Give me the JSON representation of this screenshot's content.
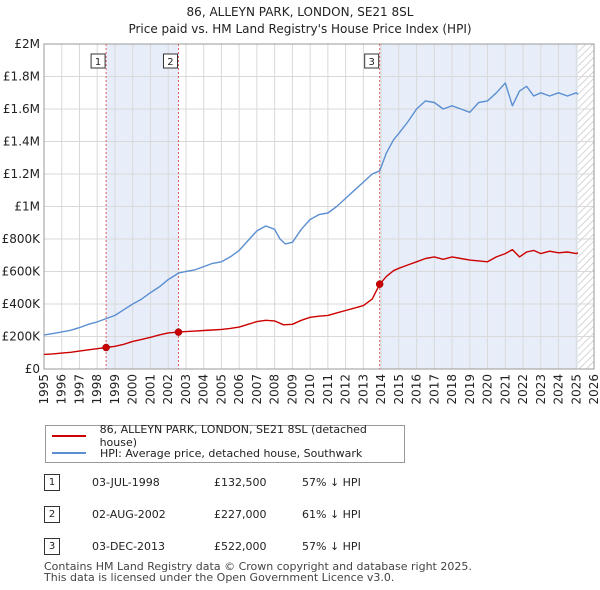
{
  "chart_data": {
    "type": "line",
    "title": "86, ALLEYN PARK, LONDON, SE21 8SL",
    "subtitle": "Price paid vs. HM Land Registry's House Price Index (HPI)",
    "xlim": [
      1995,
      2026
    ],
    "ylim": [
      0,
      2000000
    ],
    "y_ticks": [
      0,
      200000,
      400000,
      600000,
      800000,
      1000000,
      1200000,
      1400000,
      1600000,
      1800000,
      2000000
    ],
    "y_tick_labels": [
      "£0",
      "£200K",
      "£400K",
      "£600K",
      "£800K",
      "£1M",
      "£1.2M",
      "£1.4M",
      "£1.6M",
      "£1.8M",
      "£2M"
    ],
    "x_ticks": [
      1995,
      1996,
      1997,
      1998,
      1999,
      2000,
      2001,
      2002,
      2003,
      2004,
      2005,
      2006,
      2007,
      2008,
      2009,
      2010,
      2011,
      2012,
      2013,
      2014,
      2015,
      2016,
      2017,
      2018,
      2019,
      2020,
      2021,
      2022,
      2023,
      2024,
      2025,
      2026
    ],
    "x_tick_labels": [
      "1995",
      "1996",
      "1997",
      "1998",
      "1999",
      "2000",
      "2001",
      "2002",
      "2003",
      "2004",
      "2005",
      "2006",
      "2007",
      "2008",
      "2009",
      "2010",
      "2011",
      "2012",
      "2013",
      "2014",
      "2015",
      "2016",
      "2017",
      "2018",
      "2019",
      "2020",
      "2021",
      "2022",
      "2023",
      "2024",
      "2025",
      "2026"
    ],
    "grid": true,
    "shaded_periods": [
      [
        1998.5,
        2002.58
      ],
      [
        2013.92,
        2025.1
      ]
    ],
    "hatch_from": 2025.1,
    "series": [
      {
        "name": "86, ALLEYN PARK, LONDON, SE21 8SL (detached house)",
        "color": "#cc0000",
        "x": [
          1995,
          1995.5,
          1996,
          1996.5,
          1997,
          1997.5,
          1998,
          1998.5,
          1999,
          1999.5,
          2000,
          2000.5,
          2001,
          2001.5,
          2002,
          2002.58,
          2003,
          2003.5,
          2004,
          2004.5,
          2005,
          2005.5,
          2006,
          2006.5,
          2007,
          2007.5,
          2008,
          2008.5,
          2009,
          2009.5,
          2010,
          2010.5,
          2011,
          2011.5,
          2012,
          2012.5,
          2013,
          2013.5,
          2013.92,
          2014.3,
          2014.7,
          2015,
          2015.5,
          2016,
          2016.5,
          2017,
          2017.5,
          2018,
          2018.5,
          2019,
          2019.5,
          2020,
          2020.5,
          2021,
          2021.4,
          2021.8,
          2022.2,
          2022.6,
          2023,
          2023.5,
          2024,
          2024.5,
          2025,
          2025.1
        ],
        "values": [
          90000,
          93000,
          98000,
          103000,
          110000,
          118000,
          125000,
          132500,
          140000,
          152000,
          170000,
          182000,
          195000,
          210000,
          222000,
          227000,
          230000,
          233000,
          237000,
          240000,
          244000,
          250000,
          258000,
          275000,
          292000,
          300000,
          296000,
          272000,
          275000,
          300000,
          318000,
          325000,
          330000,
          345000,
          360000,
          375000,
          390000,
          430000,
          522000,
          570000,
          605000,
          620000,
          640000,
          660000,
          680000,
          690000,
          675000,
          690000,
          680000,
          670000,
          665000,
          660000,
          690000,
          710000,
          735000,
          690000,
          720000,
          730000,
          710000,
          725000,
          715000,
          720000,
          710000,
          715000
        ]
      },
      {
        "name": "HPI: Average price, detached house, Southwark",
        "color": "#5b8fd1",
        "x": [
          1995,
          1995.5,
          1996,
          1996.5,
          1997,
          1997.5,
          1998,
          1998.5,
          1999,
          1999.5,
          2000,
          2000.5,
          2001,
          2001.5,
          2002,
          2002.58,
          2003,
          2003.5,
          2004,
          2004.5,
          2005,
          2005.5,
          2006,
          2006.5,
          2007,
          2007.5,
          2008,
          2008.3,
          2008.6,
          2009,
          2009.5,
          2010,
          2010.5,
          2011,
          2011.5,
          2012,
          2012.5,
          2013,
          2013.5,
          2013.92,
          2014.3,
          2014.7,
          2015,
          2015.5,
          2016,
          2016.5,
          2017,
          2017.5,
          2018,
          2018.5,
          2019,
          2019.5,
          2020,
          2020.5,
          2021,
          2021.4,
          2021.8,
          2022.2,
          2022.6,
          2023,
          2023.5,
          2024,
          2024.5,
          2025,
          2025.1
        ],
        "values": [
          210000,
          218000,
          228000,
          238000,
          255000,
          275000,
          290000,
          310000,
          330000,
          365000,
          400000,
          430000,
          470000,
          505000,
          550000,
          590000,
          600000,
          610000,
          630000,
          650000,
          660000,
          690000,
          730000,
          790000,
          850000,
          880000,
          860000,
          800000,
          770000,
          780000,
          860000,
          920000,
          950000,
          960000,
          1000000,
          1050000,
          1100000,
          1150000,
          1200000,
          1220000,
          1330000,
          1410000,
          1450000,
          1520000,
          1600000,
          1650000,
          1640000,
          1600000,
          1620000,
          1600000,
          1580000,
          1640000,
          1650000,
          1700000,
          1760000,
          1620000,
          1710000,
          1740000,
          1680000,
          1700000,
          1680000,
          1700000,
          1680000,
          1700000,
          1690000
        ]
      }
    ],
    "sales": [
      {
        "num": "1",
        "x": 1998.5,
        "value": 132500
      },
      {
        "num": "2",
        "x": 2002.58,
        "value": 227000
      },
      {
        "num": "3",
        "x": 2013.92,
        "value": 522000
      }
    ]
  },
  "legend": {
    "property": "86, ALLEYN PARK, LONDON, SE21 8SL (detached house)",
    "hpi": "HPI: Average price, detached house, Southwark"
  },
  "sales_table": [
    {
      "num": "1",
      "date": "03-JUL-1998",
      "price": "£132,500",
      "hpi": "57% ↓ HPI"
    },
    {
      "num": "2",
      "date": "02-AUG-2002",
      "price": "£227,000",
      "hpi": "61% ↓ HPI"
    },
    {
      "num": "3",
      "date": "03-DEC-2013",
      "price": "£522,000",
      "hpi": "57% ↓ HPI"
    }
  ],
  "footer": {
    "line1": "Contains HM Land Registry data © Crown copyright and database right 2025.",
    "line2": "This data is licensed under the Open Government Licence v3.0."
  }
}
